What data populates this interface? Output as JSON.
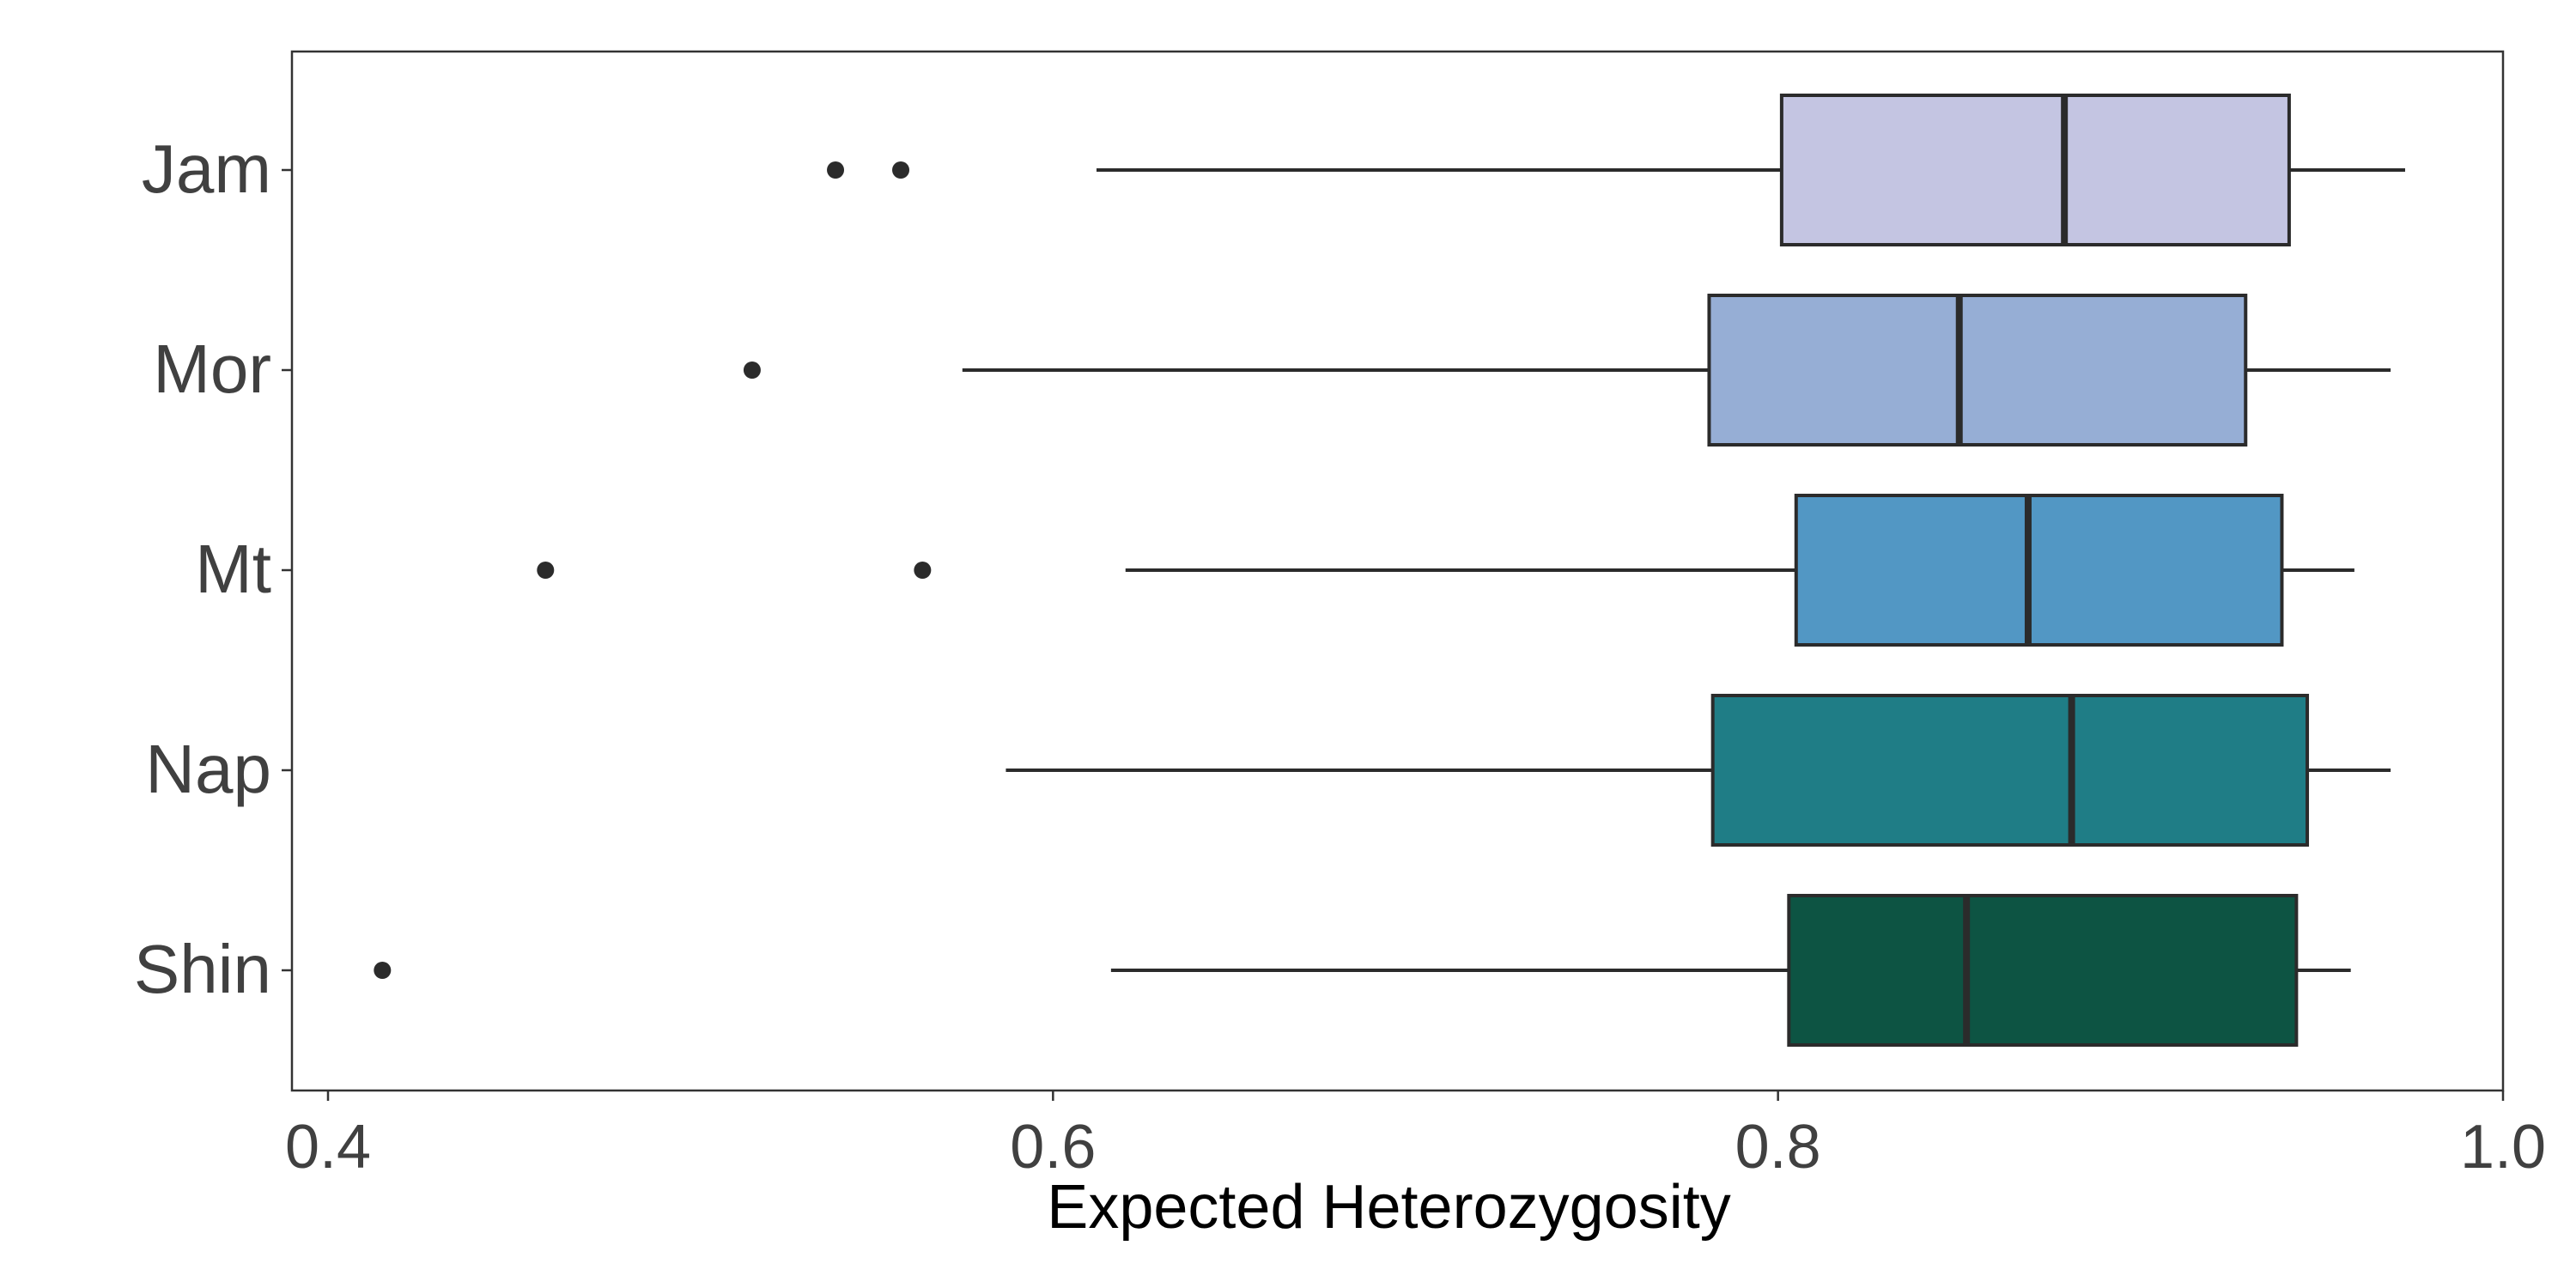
{
  "chart_data": {
    "type": "boxplot",
    "orientation": "horizontal",
    "title": "",
    "xlabel": "Expected Heterozygosity",
    "ylabel": "",
    "xlim": [
      0.39,
      1.0
    ],
    "x_ticks": [
      0.4,
      0.6,
      0.8,
      1.0
    ],
    "x_tick_labels": [
      "0.4",
      "0.6",
      "0.8",
      "1.0"
    ],
    "grid": false,
    "legend": "none",
    "categories": [
      "Jam",
      "Mor",
      "Mt",
      "Nap",
      "Shin"
    ],
    "boxes": [
      {
        "name": "Jam",
        "whisker_low": 0.612,
        "q1": 0.801,
        "median": 0.879,
        "q3": 0.941,
        "whisker_high": 0.973,
        "outliers": [
          0.54,
          0.558
        ],
        "color": "#c4c5e2"
      },
      {
        "name": "Mor",
        "whisker_low": 0.575,
        "q1": 0.781,
        "median": 0.85,
        "q3": 0.929,
        "whisker_high": 0.969,
        "outliers": [
          0.517
        ],
        "color": "#96aed5"
      },
      {
        "name": "Mt",
        "whisker_low": 0.62,
        "q1": 0.805,
        "median": 0.869,
        "q3": 0.939,
        "whisker_high": 0.959,
        "outliers": [
          0.46,
          0.564
        ],
        "color": "#5297c4"
      },
      {
        "name": "Nap",
        "whisker_low": 0.587,
        "q1": 0.782,
        "median": 0.881,
        "q3": 0.946,
        "whisker_high": 0.969,
        "outliers": [],
        "color": "#1f7d86"
      },
      {
        "name": "Shin",
        "whisker_low": 0.616,
        "q1": 0.803,
        "median": 0.852,
        "q3": 0.943,
        "whisker_high": 0.958,
        "outliers": [
          0.415
        ],
        "color": "#0d5443"
      }
    ],
    "line_color": "#2b2b2b"
  }
}
